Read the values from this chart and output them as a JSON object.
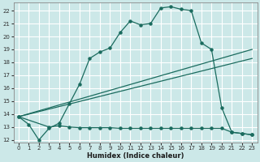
{
  "xlabel": "Humidex (Indice chaleur)",
  "bg_color": "#cce8e8",
  "grid_color": "#ffffff",
  "line_color": "#1a6b5e",
  "xlim": [
    -0.5,
    23.5
  ],
  "ylim": [
    11.8,
    22.6
  ],
  "yticks": [
    12,
    13,
    14,
    15,
    16,
    17,
    18,
    19,
    20,
    21,
    22
  ],
  "xticks": [
    0,
    1,
    2,
    3,
    4,
    5,
    6,
    7,
    8,
    9,
    10,
    11,
    12,
    13,
    14,
    15,
    16,
    17,
    18,
    19,
    20,
    21,
    22,
    23
  ],
  "series1_x": [
    0,
    1,
    2,
    3,
    4,
    5,
    6,
    7,
    8,
    9,
    10,
    11,
    12,
    13,
    14,
    15,
    16,
    17,
    18,
    19,
    20,
    21,
    22,
    23
  ],
  "series1_y": [
    13.8,
    13.2,
    12.0,
    12.9,
    13.3,
    14.8,
    16.3,
    18.3,
    18.8,
    19.1,
    20.3,
    21.2,
    20.9,
    21.0,
    22.2,
    22.3,
    22.1,
    22.0,
    19.5,
    19.0,
    14.5,
    12.6,
    12.5,
    12.4
  ],
  "series2_x": [
    0,
    3,
    4,
    5,
    6,
    7,
    8,
    9,
    10,
    11,
    12,
    13,
    14,
    15,
    16,
    17,
    18,
    19,
    20,
    21,
    22,
    23
  ],
  "series2_y": [
    13.8,
    13.0,
    13.1,
    13.0,
    12.95,
    12.95,
    12.95,
    12.95,
    12.9,
    12.9,
    12.9,
    12.9,
    12.9,
    12.9,
    12.9,
    12.9,
    12.9,
    12.9,
    12.9,
    12.6,
    12.5,
    12.4
  ],
  "series3_x": [
    0,
    23
  ],
  "series3_y": [
    13.8,
    18.3
  ],
  "series4_x": [
    0,
    23
  ],
  "series4_y": [
    13.8,
    19.0
  ]
}
